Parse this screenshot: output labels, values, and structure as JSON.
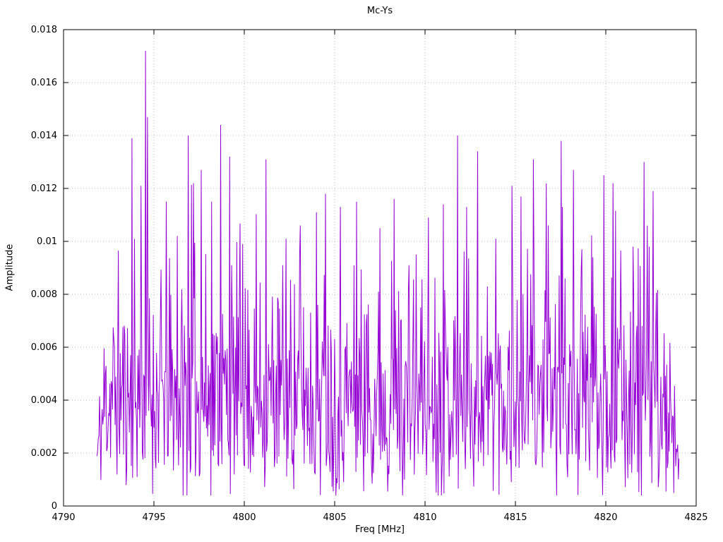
{
  "chart_data": {
    "type": "line",
    "title": "Mc-Ys",
    "xlabel": "Freq [MHz]",
    "ylabel": "Amplitude",
    "xlim": [
      4790,
      4825
    ],
    "ylim": [
      0,
      0.018
    ],
    "x_ticks": [
      "4790",
      "4795",
      "4800",
      "4805",
      "4810",
      "4815",
      "4820",
      "4825"
    ],
    "x_tick_values": [
      4790,
      4795,
      4800,
      4805,
      4810,
      4815,
      4820,
      4825
    ],
    "y_ticks": [
      "0",
      "0.002",
      "0.004",
      "0.006",
      "0.008",
      "0.01",
      "0.012",
      "0.014",
      "0.016",
      "0.018"
    ],
    "y_tick_values": [
      0,
      0.002,
      0.004,
      0.006,
      0.008,
      0.01,
      0.012,
      0.014,
      0.016,
      0.018
    ],
    "grid": true,
    "legend": "none",
    "line_color": "#9400d3",
    "grid_color": "#b8b8b8",
    "border_color": "#000000",
    "background_color": "#ffffff",
    "noise": {
      "x_start": 4791.85,
      "x_end": 4824.05,
      "n_points": 900,
      "sigma": 0.0035,
      "seed": 11,
      "y_min": 0.0004,
      "y_max": 0.0145,
      "ramp_in_span": 0.5,
      "taper_start": 4822.8,
      "taper_rate": 0.55,
      "taper_floor": 0.3
    },
    "peaks": [
      [
        4793.8,
        0.0139
      ],
      [
        4794.3,
        0.0121
      ],
      [
        4794.55,
        0.0172
      ],
      [
        4794.65,
        0.0147
      ],
      [
        4795.7,
        0.0115
      ],
      [
        4796.3,
        0.0102
      ],
      [
        4796.9,
        0.014
      ],
      [
        4797.2,
        0.0122
      ],
      [
        4797.6,
        0.0127
      ],
      [
        4798.2,
        0.0115
      ],
      [
        4798.7,
        0.0144
      ],
      [
        4799.2,
        0.0132
      ],
      [
        4799.9,
        0.0099
      ],
      [
        4801.2,
        0.0131
      ],
      [
        4802.3,
        0.0101
      ],
      [
        4803.1,
        0.0106
      ],
      [
        4804.0,
        0.0111
      ],
      [
        4804.5,
        0.0118
      ],
      [
        4805.3,
        0.0113
      ],
      [
        4806.2,
        0.0115
      ],
      [
        4807.5,
        0.0105
      ],
      [
        4808.3,
        0.0116
      ],
      [
        4809.5,
        0.0095
      ],
      [
        4810.2,
        0.0109
      ],
      [
        4811.0,
        0.0114
      ],
      [
        4811.8,
        0.014
      ],
      [
        4812.3,
        0.0113
      ],
      [
        4812.9,
        0.0134
      ],
      [
        4813.9,
        0.0101
      ],
      [
        4814.8,
        0.0121
      ],
      [
        4816.0,
        0.0131
      ],
      [
        4816.8,
        0.0106
      ],
      [
        4817.6,
        0.0113
      ],
      [
        4818.2,
        0.0127
      ],
      [
        4819.3,
        0.0094
      ],
      [
        4819.9,
        0.0125
      ],
      [
        4820.4,
        0.0122
      ],
      [
        4821.5,
        0.0098
      ],
      [
        4822.1,
        0.013
      ],
      [
        4822.6,
        0.0119
      ]
    ]
  }
}
